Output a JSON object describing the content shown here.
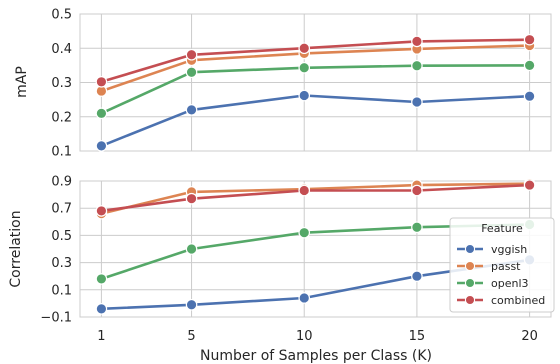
{
  "chart_data": [
    {
      "type": "line",
      "ylabel": "mAP",
      "xlabel": "",
      "x": [
        1,
        5,
        10,
        15,
        20
      ],
      "x_tick_labels": [
        "1",
        "5",
        "10",
        "15",
        "20"
      ],
      "ylim": [
        0.1,
        0.5
      ],
      "y_ticks": [
        0.1,
        0.2,
        0.3,
        0.4,
        0.5
      ],
      "y_tick_labels": [
        "0.1",
        "0.2",
        "0.3",
        "0.4",
        "0.5"
      ],
      "grid": true,
      "series": [
        {
          "name": "vggish",
          "color": "#4c72b0",
          "values": [
            0.115,
            0.22,
            0.262,
            0.243,
            0.26
          ]
        },
        {
          "name": "passt",
          "color": "#dd8452",
          "values": [
            0.275,
            0.365,
            0.385,
            0.398,
            0.408
          ]
        },
        {
          "name": "openl3",
          "color": "#55a868",
          "values": [
            0.21,
            0.33,
            0.343,
            0.349,
            0.35
          ]
        },
        {
          "name": "combined",
          "color": "#c44e52",
          "values": [
            0.302,
            0.381,
            0.4,
            0.42,
            0.425
          ]
        }
      ]
    },
    {
      "type": "line",
      "ylabel": "Correlation",
      "xlabel": "Number of Samples per Class (K)",
      "x": [
        1,
        5,
        10,
        15,
        20
      ],
      "x_tick_labels": [
        "1",
        "5",
        "10",
        "15",
        "20"
      ],
      "ylim": [
        -0.1,
        0.9
      ],
      "y_ticks": [
        -0.1,
        0.1,
        0.3,
        0.5,
        0.7,
        0.9
      ],
      "y_tick_labels": [
        "−0.1",
        "0.1",
        "0.3",
        "0.5",
        "0.7",
        "0.9"
      ],
      "grid": true,
      "legend": {
        "title": "Feature",
        "placement": "bottom-right",
        "entries": [
          "vggish",
          "passt",
          "openl3",
          "combined"
        ]
      },
      "series": [
        {
          "name": "vggish",
          "color": "#4c72b0",
          "values": [
            -0.04,
            -0.01,
            0.04,
            0.2,
            0.32
          ]
        },
        {
          "name": "passt",
          "color": "#dd8452",
          "values": [
            0.66,
            0.82,
            0.84,
            0.87,
            0.88
          ]
        },
        {
          "name": "openl3",
          "color": "#55a868",
          "values": [
            0.18,
            0.4,
            0.52,
            0.56,
            0.58
          ]
        },
        {
          "name": "combined",
          "color": "#c44e52",
          "values": [
            0.68,
            0.77,
            0.83,
            0.83,
            0.87
          ]
        }
      ]
    }
  ]
}
